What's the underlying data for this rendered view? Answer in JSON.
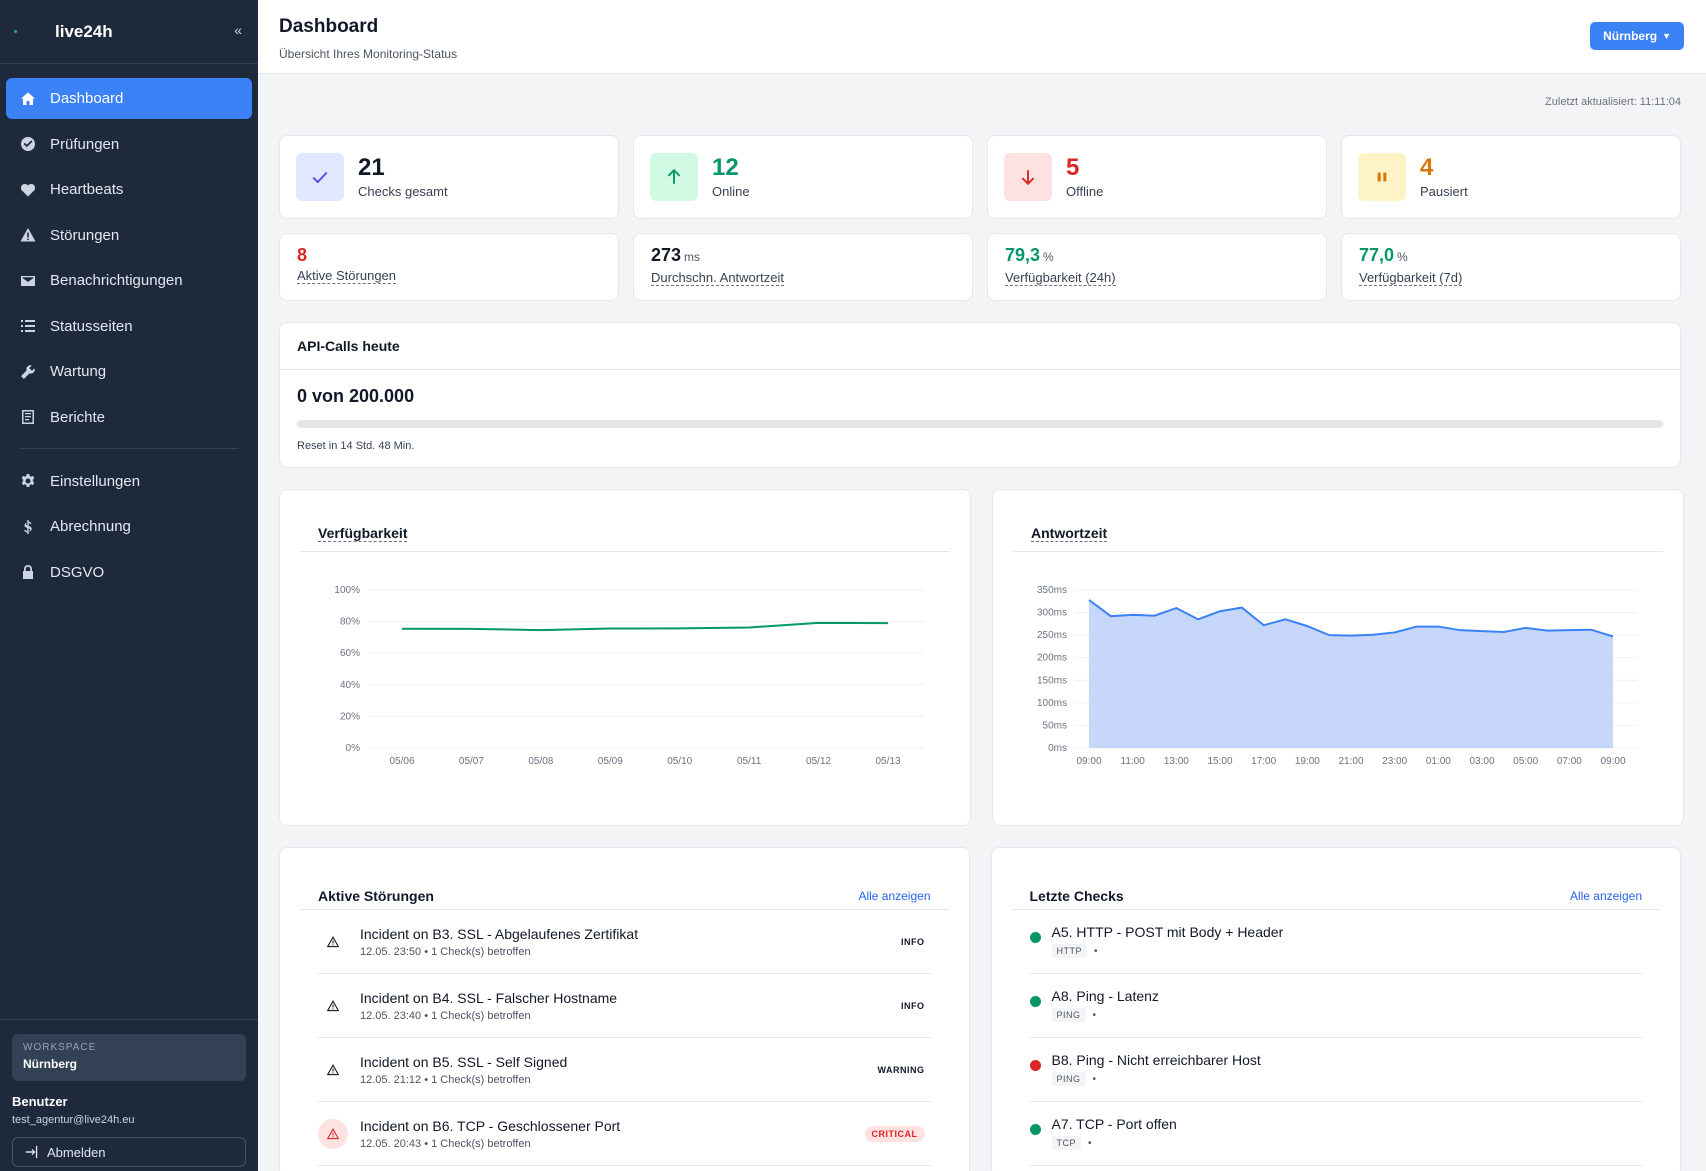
{
  "brand": {
    "name": "live24h",
    "collapse": "«"
  },
  "sidebar": {
    "items": [
      {
        "label": "Dashboard",
        "icon": "home-icon",
        "active": true
      },
      {
        "label": "Prüfungen",
        "icon": "check-circle-icon"
      },
      {
        "label": "Heartbeats",
        "icon": "heart-icon"
      },
      {
        "label": "Störungen",
        "icon": "warning-icon"
      },
      {
        "label": "Benachrichtigungen",
        "icon": "envelope-icon"
      },
      {
        "label": "Statusseiten",
        "icon": "list-icon"
      },
      {
        "label": "Wartung",
        "icon": "wrench-icon"
      },
      {
        "label": "Berichte",
        "icon": "report-icon"
      }
    ],
    "items2": [
      {
        "label": "Einstellungen",
        "icon": "gear-icon"
      },
      {
        "label": "Abrechnung",
        "icon": "dollar-icon"
      },
      {
        "label": "DSGVO",
        "icon": "lock-icon"
      }
    ],
    "workspace_label": "WORKSPACE",
    "workspace_name": "Nürnberg",
    "user_label": "Benutzer",
    "user_email": "test_agentur@live24h.eu",
    "logout": "Abmelden"
  },
  "header": {
    "title": "Dashboard",
    "subtitle": "Übersicht Ihres Monitoring-Status",
    "location": "Nürnberg"
  },
  "updated": "Zuletzt aktualisiert: 11:11:04",
  "stats": [
    {
      "value": "21",
      "label": "Checks gesamt",
      "color": "#111827",
      "icon": "checkmark-icon",
      "bg": "#e0e7ff",
      "fg": "#4f46e5"
    },
    {
      "value": "12",
      "label": "Online",
      "color": "#059669",
      "icon": "arrow-up-icon",
      "bg": "#d1fae5",
      "fg": "#059669"
    },
    {
      "value": "5",
      "label": "Offline",
      "color": "#dc2626",
      "icon": "arrow-down-icon",
      "bg": "#fee2e2",
      "fg": "#dc2626"
    },
    {
      "value": "4",
      "label": "Pausiert",
      "color": "#d97706",
      "icon": "pause-icon",
      "bg": "#fef3c7",
      "fg": "#d97706"
    }
  ],
  "kpis": [
    {
      "value": "8",
      "unit": "",
      "label": "Aktive Störungen",
      "color": "#dc2626"
    },
    {
      "value": "273",
      "unit": "ms",
      "label": "Durchschn. Antwortzeit",
      "color": "#111827"
    },
    {
      "value": "79,3",
      "unit": "%",
      "label": "Verfügbarkeit (24h)",
      "color": "#059669"
    },
    {
      "value": "77,0",
      "unit": "%",
      "label": "Verfügbarkeit (7d)",
      "color": "#059669"
    }
  ],
  "api": {
    "title": "API-Calls heute",
    "count": "0 von 200.000",
    "used_fraction": 0,
    "reset": "Reset in 14 Std. 48 Min."
  },
  "chart_data": [
    {
      "type": "line",
      "title": "Verfügbarkeit",
      "categories": [
        "05/06",
        "05/07",
        "05/08",
        "05/09",
        "05/10",
        "05/11",
        "05/12",
        "05/13"
      ],
      "values": [
        75.5,
        75.4,
        74.6,
        75.6,
        75.7,
        76.3,
        79.2,
        79.0
      ],
      "y_ticks": [
        "0%",
        "20%",
        "40%",
        "60%",
        "80%",
        "100%"
      ],
      "ylim": [
        0,
        100
      ],
      "color": "#059669"
    },
    {
      "type": "area",
      "title": "Antwortzeit",
      "x_labels": [
        "09:00",
        "11:00",
        "13:00",
        "15:00",
        "17:00",
        "19:00",
        "21:00",
        "23:00",
        "01:00",
        "03:00",
        "05:00",
        "07:00",
        "09:00"
      ],
      "values": [
        328,
        292,
        295,
        293,
        310,
        285,
        303,
        311,
        272,
        285,
        270,
        250,
        249,
        251,
        256,
        269,
        269,
        261,
        259,
        257,
        266,
        260,
        261,
        262,
        247
      ],
      "y_ticks": [
        "0ms",
        "50ms",
        "100ms",
        "150ms",
        "200ms",
        "250ms",
        "300ms",
        "350ms"
      ],
      "ylim": [
        0,
        350
      ],
      "color": "#3b82f6",
      "fill": "#c7d7fb"
    }
  ],
  "incidents": {
    "title": "Aktive Störungen",
    "link": "Alle anzeigen",
    "items": [
      {
        "title": "Incident on B3. SSL - Abgelaufenes Zertifikat",
        "meta": "12.05. 23:50 • 1 Check(s) betroffen",
        "badge": "INFO",
        "level": "info"
      },
      {
        "title": "Incident on B4. SSL - Falscher Hostname",
        "meta": "12.05. 23:40 • 1 Check(s) betroffen",
        "badge": "INFO",
        "level": "info"
      },
      {
        "title": "Incident on B5. SSL - Self Signed",
        "meta": "12.05. 21:12 • 1 Check(s) betroffen",
        "badge": "WARNING",
        "level": "warning"
      },
      {
        "title": "Incident on B6. TCP - Geschlossener Port",
        "meta": "12.05. 20:43 • 1 Check(s) betroffen",
        "badge": "CRITICAL",
        "level": "critical"
      }
    ]
  },
  "checks": {
    "title": "Letzte Checks",
    "link": "Alle anzeigen",
    "items": [
      {
        "title": "A5. HTTP - POST mit Body + Header",
        "tag": "HTTP",
        "status": "up"
      },
      {
        "title": "A8. Ping - Latenz",
        "tag": "PING",
        "status": "up"
      },
      {
        "title": "B8. Ping - Nicht erreichbarer Host",
        "tag": "PING",
        "status": "down"
      },
      {
        "title": "A7. TCP - Port offen",
        "tag": "TCP",
        "status": "up"
      }
    ],
    "dot_sep": "•",
    "colors": {
      "up": "#059669",
      "down": "#dc2626"
    }
  }
}
